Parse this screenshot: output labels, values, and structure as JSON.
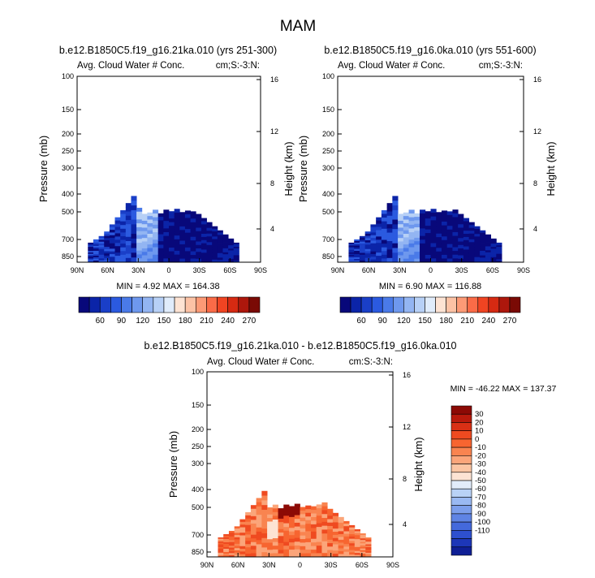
{
  "figure": {
    "title": "MAM",
    "min_max_labels": [
      "MIN =  4.92  MAX = 164.38",
      "MIN =  6.90  MAX = 116.88",
      "MIN = -46.22  MAX = 137.37"
    ]
  },
  "chart_data": [
    {
      "type": "heatmap",
      "title": "b.e12.B1850C5.f19_g16.21ka.010 (yrs 251-300)",
      "subtitle_left": "Avg. Cloud Water # Conc.",
      "subtitle_right": "cm;S:-3:N:",
      "ylabel": "Pressure (mb)",
      "ylabel_right": "Height (km)",
      "x_ticks": [
        "90N",
        "60N",
        "30N",
        "0",
        "30S",
        "60S",
        "90S"
      ],
      "y_ticks": [
        "100",
        "150",
        "200",
        "250",
        "300",
        "400",
        "500",
        "700",
        "850"
      ],
      "y_ticks_right": [
        "16",
        "12",
        "8",
        "4"
      ],
      "ylim": [
        100,
        900
      ],
      "min": 4.92,
      "max": 164.38,
      "colorbar_labels": [
        "60",
        "90",
        "120",
        "150",
        "180",
        "210",
        "240",
        "270"
      ],
      "colors": [
        "#08087a",
        "#0b24a8",
        "#1a3fc8",
        "#2b5ae0",
        "#4a7ae8",
        "#6e98ee",
        "#93b5f2",
        "#b7d0f6",
        "#e0ecfb",
        "#fde3d3",
        "#fcc2a5",
        "#fc9a76",
        "#fa6b47",
        "#f04422",
        "#d62a12",
        "#ad170c",
        "#7a0a05"
      ]
    },
    {
      "type": "heatmap",
      "title": "b.e12.B1850C5.f19_g16.0ka.010 (yrs 551-600)",
      "subtitle_left": "Avg. Cloud Water # Conc.",
      "subtitle_right": "cm;S:-3:N:",
      "ylabel": "Pressure (mb)",
      "ylabel_right": "Height (km)",
      "x_ticks": [
        "90N",
        "60N",
        "30N",
        "0",
        "30S",
        "60S",
        "90S"
      ],
      "y_ticks": [
        "100",
        "150",
        "200",
        "250",
        "300",
        "400",
        "500",
        "700",
        "850"
      ],
      "y_ticks_right": [
        "16",
        "12",
        "8",
        "4"
      ],
      "ylim": [
        100,
        900
      ],
      "min": 6.9,
      "max": 116.88,
      "colorbar_labels": [
        "60",
        "90",
        "120",
        "150",
        "180",
        "210",
        "240",
        "270"
      ]
    },
    {
      "type": "heatmap",
      "title": "b.e12.B1850C5.f19_g16.21ka.010 - b.e12.B1850C5.f19_g16.0ka.010",
      "subtitle_left": "Avg. Cloud Water # Conc.",
      "subtitle_right": "cm:S:-3:N:",
      "ylabel": "Pressure (mb)",
      "ylabel_right": "Height (km)",
      "x_ticks": [
        "90N",
        "60N",
        "30N",
        "0",
        "30S",
        "60S",
        "90S"
      ],
      "y_ticks": [
        "100",
        "150",
        "200",
        "250",
        "300",
        "400",
        "500",
        "700",
        "850"
      ],
      "y_ticks_right": [
        "16",
        "12",
        "8",
        "4"
      ],
      "ylim": [
        100,
        900
      ],
      "min": -46.22,
      "max": 137.37,
      "colorbar_labels": [
        "30",
        "20",
        "10",
        "0",
        "-10",
        "-20",
        "-30",
        "-40",
        "-50",
        "-60",
        "-70",
        "-80",
        "-90",
        "-100",
        "-110"
      ],
      "colors": [
        "#8c0a05",
        "#b81a0c",
        "#d93015",
        "#ef4a20",
        "#f76530",
        "#f98450",
        "#fba57a",
        "#fcc5a3",
        "#fde3d3",
        "#e2ecfa",
        "#b9d2f6",
        "#9ab9f2",
        "#7c9eeb",
        "#5f84e4",
        "#4469dc",
        "#2e50cf",
        "#1d37b8",
        "#0f1f95"
      ]
    }
  ]
}
